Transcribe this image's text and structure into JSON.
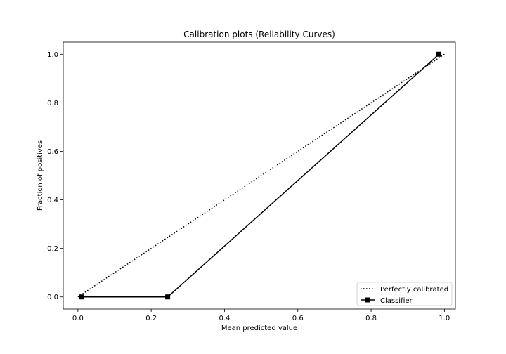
{
  "chart_data": {
    "type": "line",
    "title": "Calibration plots (Reliability Curves)",
    "xlabel": "Mean predicted value",
    "ylabel": "Fraction of positives",
    "xlim": [
      -0.04,
      1.03
    ],
    "ylim": [
      -0.05,
      1.05
    ],
    "xticks": [
      0.0,
      0.2,
      0.4,
      0.6,
      0.8,
      1.0
    ],
    "xtick_labels": [
      "0.0",
      "0.2",
      "0.4",
      "0.6",
      "0.8",
      "1.0"
    ],
    "yticks": [
      0.0,
      0.2,
      0.4,
      0.6,
      0.8,
      1.0
    ],
    "ytick_labels": [
      "0.0",
      "0.2",
      "0.4",
      "0.6",
      "0.8",
      "1.0"
    ],
    "grid": false,
    "legend_position": "bottom-right",
    "series": [
      {
        "name": "Perfectly calibrated",
        "style": "dotted",
        "marker": "none",
        "color": "#000000",
        "x": [
          0.0,
          1.0
        ],
        "y": [
          0.0,
          1.0
        ]
      },
      {
        "name": "Classifier",
        "style": "solid",
        "marker": "square",
        "color": "#000000",
        "x": [
          0.01,
          0.245,
          0.985
        ],
        "y": [
          0.0,
          0.0,
          1.0
        ]
      }
    ]
  }
}
